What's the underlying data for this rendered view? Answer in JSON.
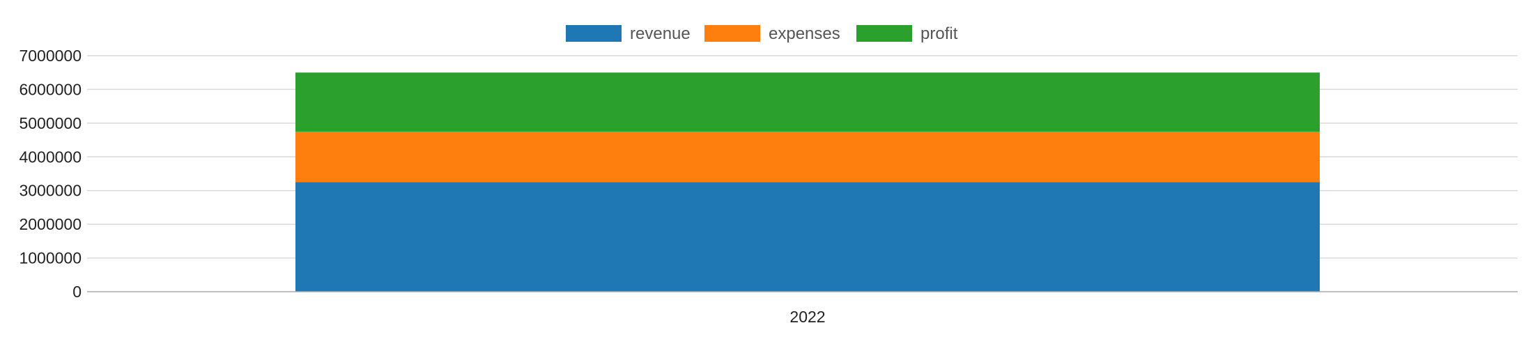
{
  "chart_data": {
    "type": "bar",
    "stacked": true,
    "categories": [
      "2022"
    ],
    "series": [
      {
        "name": "revenue",
        "color": "#1f77b4",
        "values": [
          3250000
        ]
      },
      {
        "name": "expenses",
        "color": "#ff7f0e",
        "values": [
          1500000
        ]
      },
      {
        "name": "profit",
        "color": "#2ca02c",
        "values": [
          1750000
        ]
      }
    ],
    "y_ticks": [
      "0",
      "1000000",
      "2000000",
      "3000000",
      "4000000",
      "5000000",
      "6000000",
      "7000000"
    ],
    "ylim": [
      0,
      7000000
    ],
    "grid": true,
    "legend_position": "top-center"
  }
}
